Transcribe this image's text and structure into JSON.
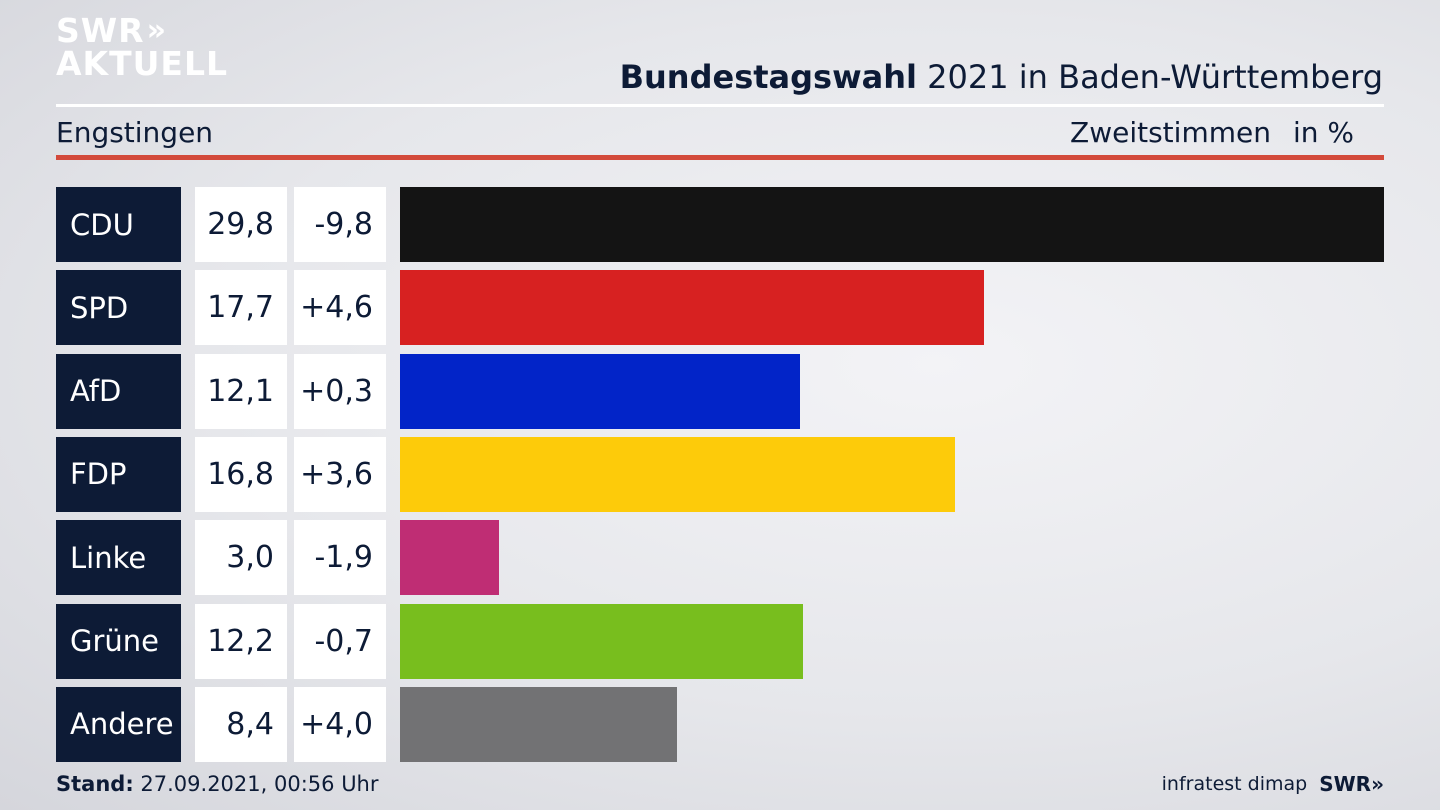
{
  "logo": {
    "line1": "SWR",
    "chevrons": "»",
    "line2": "AKTUELL"
  },
  "header": {
    "title_bold": "Bundestagswahl",
    "title_rest": "2021 in Baden-Württemberg",
    "region": "Engstingen",
    "subtitle": "Zweitstimmen",
    "unit": "in %"
  },
  "chart_data": {
    "type": "bar",
    "title": "Bundestagswahl 2021 in Baden-Württemberg",
    "subtitle": "Zweitstimmen in %",
    "region": "Engstingen",
    "orientation": "horizontal",
    "categories": [
      "CDU",
      "SPD",
      "AfD",
      "FDP",
      "Linke",
      "Grüne",
      "Andere"
    ],
    "values": [
      29.8,
      17.7,
      12.1,
      16.8,
      3.0,
      12.2,
      8.4
    ],
    "value_labels": [
      "29,8",
      "17,7",
      "12,1",
      "16,8",
      "3,0",
      "12,2",
      "8,4"
    ],
    "diff_labels": [
      "-9,8",
      "+4,6",
      "+0,3",
      "+3,6",
      "-1,9",
      "-0,7",
      "+4,0"
    ],
    "colors": [
      "#141414",
      "#d72121",
      "#0224c8",
      "#fdcb0a",
      "#bf2d74",
      "#78be1e",
      "#727274"
    ],
    "xlim": [
      0,
      29.8
    ]
  },
  "footer": {
    "stand_label": "Stand:",
    "stand_value": "27.09.2021, 00:56 Uhr",
    "source": "infratest dimap",
    "brand": "SWR»"
  }
}
